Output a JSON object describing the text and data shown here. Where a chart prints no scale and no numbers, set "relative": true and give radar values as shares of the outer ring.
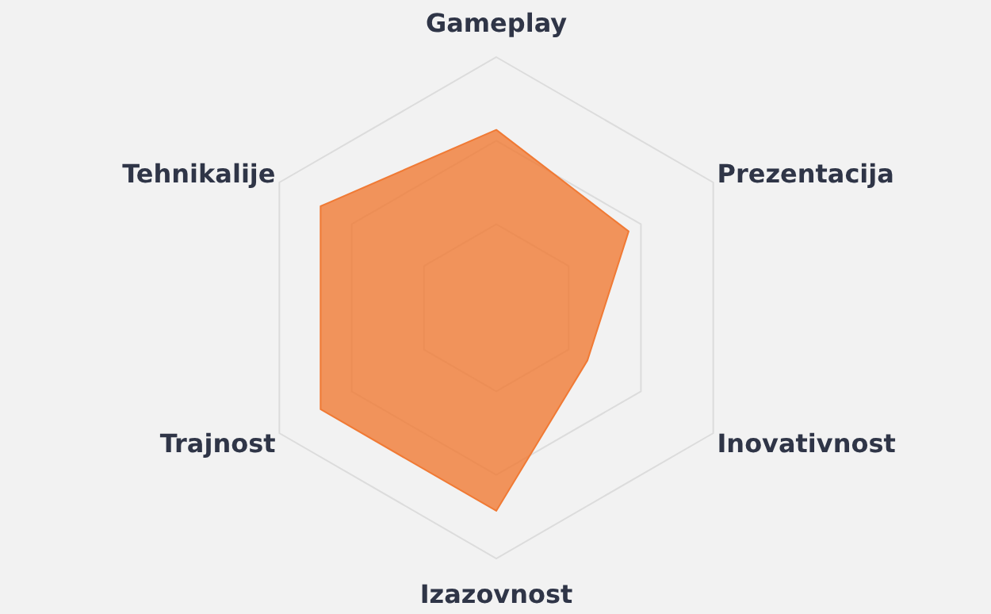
{
  "chart_data": {
    "type": "radar",
    "relative": true,
    "grid": true,
    "categories": [
      "Gameplay",
      "Prezentacija",
      "Inovativnost",
      "Izazovnost",
      "Trajnost",
      "Tehnikalije"
    ],
    "series": [
      {
        "color": "#f07a35",
        "values": [
          0.71,
          0.61,
          0.42,
          0.81,
          0.81,
          0.81
        ]
      }
    ]
  }
}
